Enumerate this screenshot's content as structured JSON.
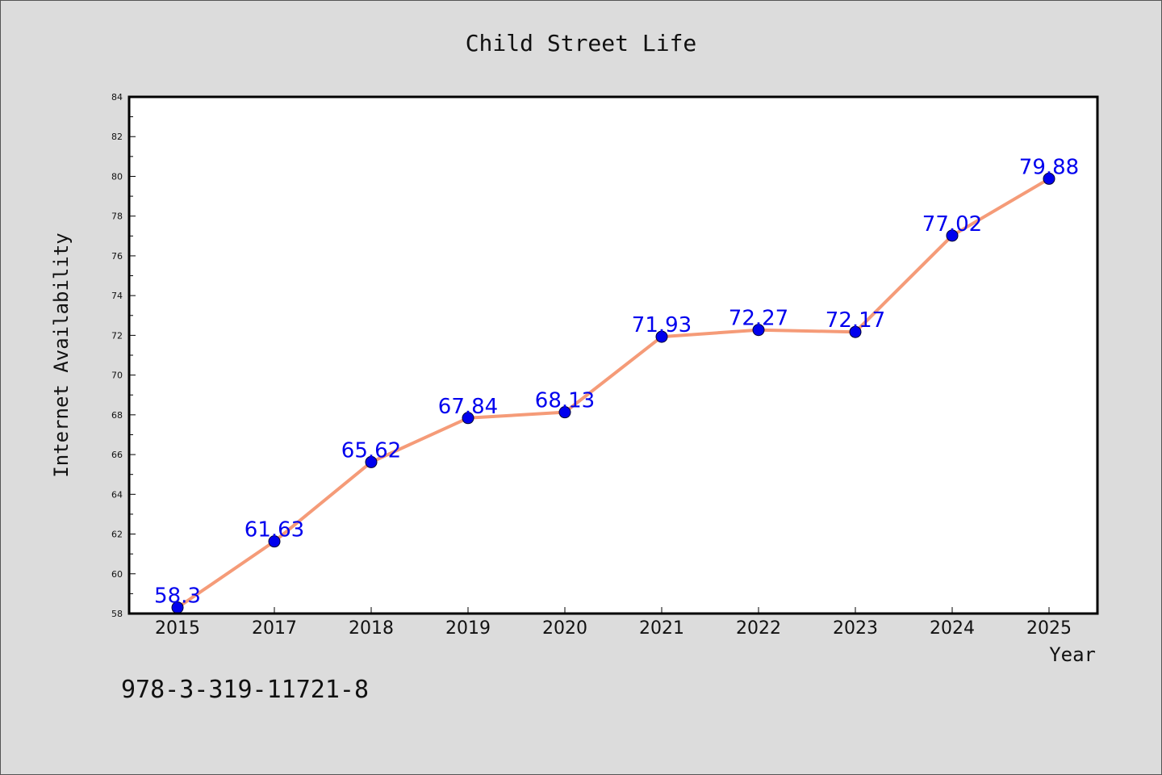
{
  "chart_data": {
    "type": "line",
    "title": "Child Street Life",
    "xlabel": "Year",
    "ylabel": "Internet Availability",
    "categories": [
      "2015",
      "2017",
      "2018",
      "2019",
      "2020",
      "2021",
      "2022",
      "2023",
      "2024",
      "2025"
    ],
    "series": [
      {
        "values": [
          58.3,
          61.63,
          65.62,
          67.84,
          68.13,
          71.93,
          72.27,
          72.17,
          77.02,
          79.88
        ],
        "line_color": "#f59b78",
        "marker_color": "#0000ee"
      }
    ],
    "ylim": [
      58,
      84
    ],
    "yticks": [
      58,
      60,
      62,
      64,
      66,
      68,
      70,
      72,
      74,
      76,
      78,
      80,
      82,
      84
    ],
    "grid": false,
    "legend": "none",
    "data_labels": [
      "58.3",
      "61.63",
      "65.62",
      "67.84",
      "68.13",
      "71.93",
      "72.27",
      "72.17",
      "77.02",
      "79.88"
    ]
  },
  "annotation": "978-3-319-11721-8",
  "colors": {
    "background": "#dcdcdc",
    "plot_background": "#ffffff",
    "frame": "#000000"
  }
}
